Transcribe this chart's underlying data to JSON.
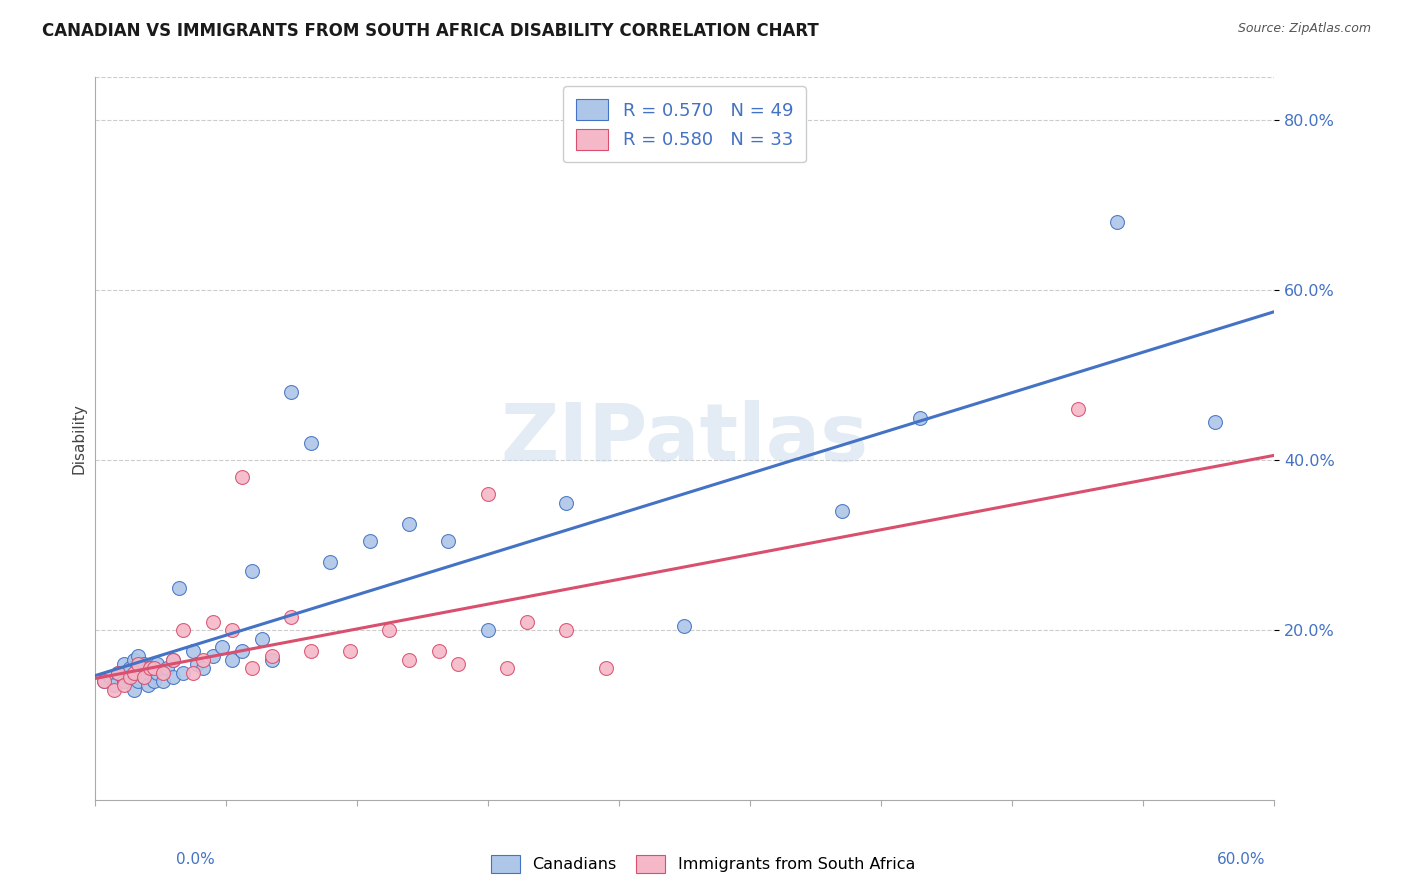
{
  "title": "CANADIAN VS IMMIGRANTS FROM SOUTH AFRICA DISABILITY CORRELATION CHART",
  "source": "Source: ZipAtlas.com",
  "ylabel": "Disability",
  "xlim": [
    0.0,
    0.6
  ],
  "ylim": [
    0.0,
    0.85
  ],
  "canadian_color": "#aec6e8",
  "canadian_line_color": "#4472c4",
  "immigrant_color": "#f4b8c8",
  "immigrant_line_color": "#d94f6e",
  "background_color": "#ffffff",
  "watermark": "ZIPatlas",
  "canadians_x": [
    0.005,
    0.008,
    0.01,
    0.012,
    0.015,
    0.015,
    0.017,
    0.018,
    0.02,
    0.02,
    0.022,
    0.022,
    0.025,
    0.025,
    0.027,
    0.027,
    0.03,
    0.03,
    0.032,
    0.032,
    0.035,
    0.037,
    0.04,
    0.04,
    0.043,
    0.045,
    0.05,
    0.052,
    0.055,
    0.06,
    0.065,
    0.07,
    0.075,
    0.08,
    0.085,
    0.09,
    0.1,
    0.11,
    0.12,
    0.14,
    0.16,
    0.18,
    0.2,
    0.24,
    0.3,
    0.38,
    0.42,
    0.52,
    0.57
  ],
  "canadians_y": [
    0.14,
    0.145,
    0.135,
    0.15,
    0.14,
    0.16,
    0.145,
    0.155,
    0.13,
    0.165,
    0.14,
    0.17,
    0.145,
    0.16,
    0.135,
    0.155,
    0.14,
    0.155,
    0.15,
    0.16,
    0.14,
    0.155,
    0.145,
    0.165,
    0.25,
    0.15,
    0.175,
    0.16,
    0.155,
    0.17,
    0.18,
    0.165,
    0.175,
    0.27,
    0.19,
    0.165,
    0.48,
    0.42,
    0.28,
    0.305,
    0.325,
    0.305,
    0.2,
    0.35,
    0.205,
    0.34,
    0.45,
    0.68,
    0.445
  ],
  "immigrants_x": [
    0.005,
    0.01,
    0.012,
    0.015,
    0.018,
    0.02,
    0.022,
    0.025,
    0.028,
    0.03,
    0.035,
    0.04,
    0.045,
    0.05,
    0.055,
    0.06,
    0.07,
    0.075,
    0.08,
    0.09,
    0.1,
    0.11,
    0.13,
    0.15,
    0.16,
    0.175,
    0.185,
    0.2,
    0.21,
    0.22,
    0.24,
    0.26,
    0.5
  ],
  "immigrants_y": [
    0.14,
    0.13,
    0.15,
    0.135,
    0.145,
    0.15,
    0.16,
    0.145,
    0.155,
    0.155,
    0.15,
    0.165,
    0.2,
    0.15,
    0.165,
    0.21,
    0.2,
    0.38,
    0.155,
    0.17,
    0.215,
    0.175,
    0.175,
    0.2,
    0.165,
    0.175,
    0.16,
    0.36,
    0.155,
    0.21,
    0.2,
    0.155,
    0.46
  ],
  "ytick_vals": [
    0.2,
    0.4,
    0.6,
    0.8
  ],
  "ytick_labels": [
    "20.0%",
    "40.0%",
    "60.0%",
    "80.0%"
  ],
  "grid_color": "#cccccc",
  "legend_text_color": "#4472c4"
}
